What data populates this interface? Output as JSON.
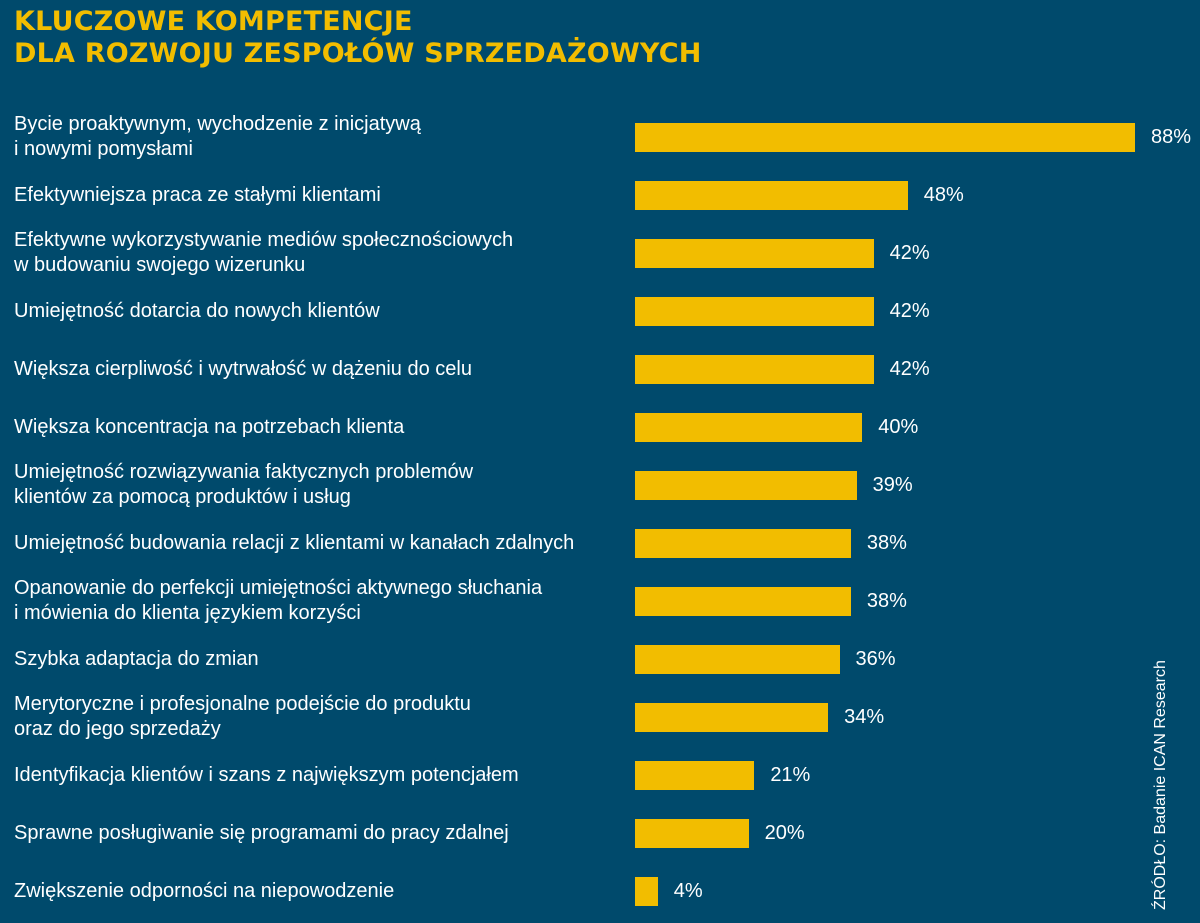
{
  "colors": {
    "background": "#004a6c",
    "accent": "#f2bd00",
    "text": "#ffffff"
  },
  "title_lines": [
    "KLUCZOWE KOMPETENCJE",
    "DLA ROZWOJU ZESPOŁÓW SPRZEDAŻOWYCH"
  ],
  "source": "ŹRÓDŁO: Badanie ICAN Research",
  "chart_data": {
    "type": "bar",
    "orientation": "horizontal",
    "title": "KLUCZOWE KOMPETENCJE DLA ROZWOJU ZESPOŁÓW SPRZEDAŻOWYCH",
    "xlabel": "",
    "ylabel": "",
    "unit": "%",
    "xlim": [
      0,
      88
    ],
    "grid": false,
    "categories": [
      "Bycie proaktywnym, wychodzenie z inicjatywą\ni nowymi pomysłami",
      "Efektywniejsza praca ze stałymi klientami",
      "Efektywne wykorzystywanie mediów społecznościowych\nw budowaniu swojego wizerunku",
      "Umiejętność dotarcia do nowych klientów",
      "Większa cierpliwość i wytrwałość w dążeniu do celu",
      "Większa koncentracja na potrzebach klienta",
      "Umiejętność rozwiązywania faktycznych problemów\nklientów za pomocą produktów i usług",
      "Umiejętność budowania relacji z klientami w kanałach zdalnych",
      "Opanowanie do perfekcji umiejętności aktywnego słuchania\ni mówienia do klienta językiem korzyści",
      "Szybka adaptacja do zmian",
      "Merytoryczne i profesjonalne podejście do produktu\noraz do jego sprzedaży",
      "Identyfikacja klientów i szans z największym potencjałem",
      "Sprawne posługiwanie się programami do pracy zdalnej",
      "Zwiększenie odporności na niepowodzenie"
    ],
    "values": [
      88,
      48,
      42,
      42,
      42,
      40,
      39,
      38,
      38,
      36,
      34,
      21,
      20,
      4
    ],
    "value_labels": [
      "88%",
      "48%",
      "42%",
      "42%",
      "42%",
      "40%",
      "39%",
      "38%",
      "38%",
      "36%",
      "34%",
      "21%",
      "20%",
      "4%"
    ]
  }
}
